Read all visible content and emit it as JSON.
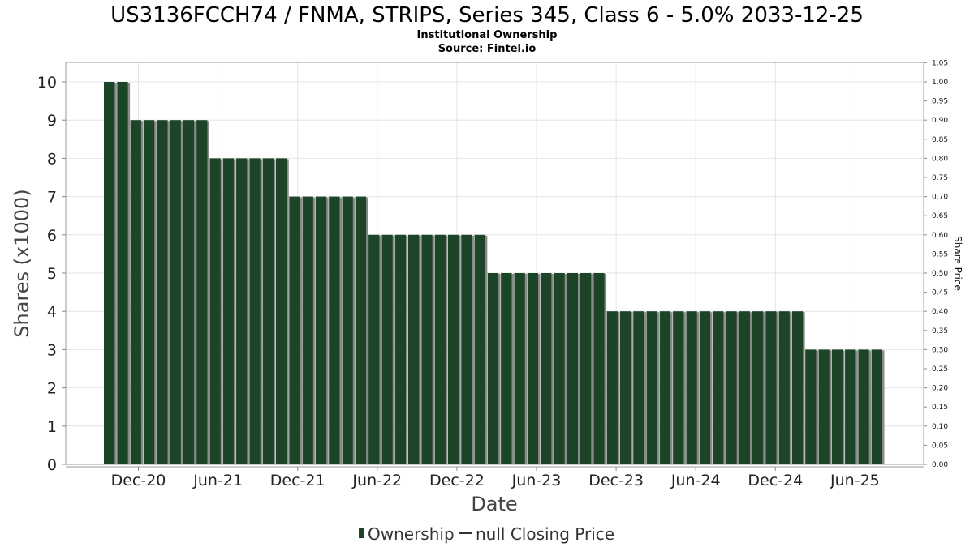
{
  "chart_data": {
    "type": "bar",
    "title": "US3136FCCH74 / FNMA, STRIPS, Series 345, Class 6 - 5.0% 2033-12-25",
    "subtitle": "Institutional Ownership",
    "source": "Source: Fintel.io",
    "xlabel": "Date",
    "ylabel": "Shares (x1000)",
    "y2label": "Share Price",
    "ylim": [
      0,
      10.5
    ],
    "y2lim": [
      0,
      1.05
    ],
    "yticks": [
      "0",
      "1",
      "2",
      "3",
      "4",
      "5",
      "6",
      "7",
      "8",
      "9",
      "10"
    ],
    "y2ticks": [
      "0.00",
      "0.05",
      "0.10",
      "0.15",
      "0.20",
      "0.25",
      "0.30",
      "0.35",
      "0.40",
      "0.45",
      "0.50",
      "0.55",
      "0.60",
      "0.65",
      "0.70",
      "0.75",
      "0.80",
      "0.85",
      "0.90",
      "0.95",
      "1.00",
      "1.05"
    ],
    "xticks": [
      "Dec-20",
      "Jun-21",
      "Dec-21",
      "Jun-22",
      "Dec-22",
      "Jun-23",
      "Dec-23",
      "Jun-24",
      "Dec-24",
      "Jun-25"
    ],
    "grid": true,
    "legend": {
      "placement": "bottom",
      "ownership_label": "Ownership",
      "price_label": "null Closing Price"
    },
    "series": [
      {
        "name": "Ownership",
        "color": "#1c4426",
        "values": [
          10,
          10,
          9,
          9,
          9,
          9,
          9,
          9,
          8,
          8,
          8,
          8,
          8,
          8,
          7,
          7,
          7,
          7,
          7,
          7,
          6,
          6,
          6,
          6,
          6,
          6,
          6,
          6,
          6,
          5,
          5,
          5,
          5,
          5,
          5,
          5,
          5,
          5,
          4,
          4,
          4,
          4,
          4,
          4,
          4,
          4,
          4,
          4,
          4,
          4,
          4,
          4,
          4,
          3,
          3,
          3,
          3,
          3,
          3
        ]
      }
    ]
  }
}
